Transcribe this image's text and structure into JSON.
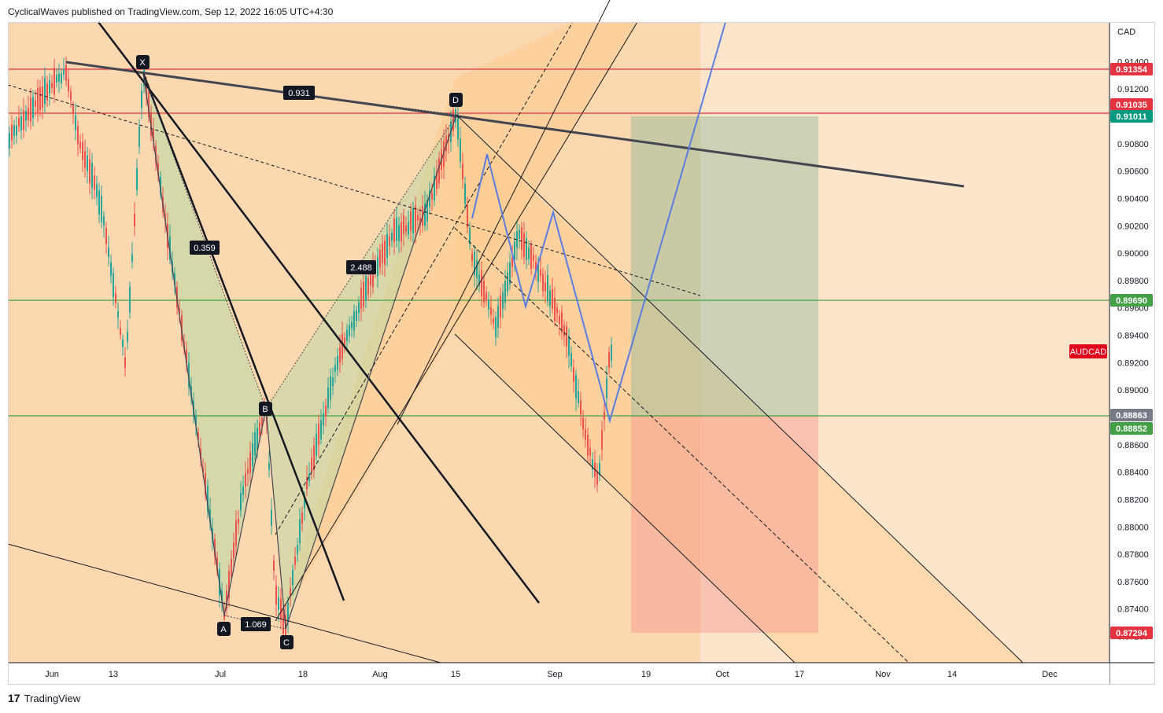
{
  "header": {
    "publisher": "CyclicalWaves published on TradingView.com, Sep 12, 2022 16:05 UTC+4:30"
  },
  "footer": {
    "brand_logo": "17",
    "brand": "TradingView"
  },
  "symbol": {
    "name": "AUDCAD",
    "color": "#e1001c"
  },
  "chart_data": {
    "type": "candlestick",
    "currency_label": "CAD",
    "y_ticks": [
      "0.91400",
      "0.91200",
      "0.90800",
      "0.90600",
      "0.90400",
      "0.90200",
      "0.90000",
      "0.89800",
      "0.89600",
      "0.89400",
      "0.89200",
      "0.89000",
      "0.88600",
      "0.88400",
      "0.88200",
      "0.88000",
      "0.87800",
      "0.87600",
      "0.87400",
      "0.87200"
    ],
    "x_ticks": [
      "Jun",
      "13",
      "Jul",
      "18",
      "Aug",
      "15",
      "Sep",
      "19",
      "Oct",
      "17",
      "Nov",
      "14",
      "Dec"
    ],
    "price_tags": [
      {
        "value": "0.91354",
        "color": "#e5333f"
      },
      {
        "value": "0.91035",
        "color": "#e5333f"
      },
      {
        "value": "0.91011",
        "color": "#089981"
      },
      {
        "value": "0.89690",
        "color": "#43a047"
      },
      {
        "value": "0.88863",
        "color": "#787b86"
      },
      {
        "value": "0.88852",
        "color": "#43a047"
      },
      {
        "value": "0.87294",
        "color": "#e5333f"
      }
    ],
    "pattern_points": [
      "X",
      "A",
      "B",
      "C",
      "D"
    ],
    "ratios": [
      "0.931",
      "0.359",
      "2.488",
      "1.069"
    ],
    "colors": {
      "up": "#26a69a",
      "down": "#ef5350",
      "resistance": "#e5333f",
      "support": "#43a047",
      "projection": "#2962ff",
      "channel": "#ffb74d"
    }
  }
}
